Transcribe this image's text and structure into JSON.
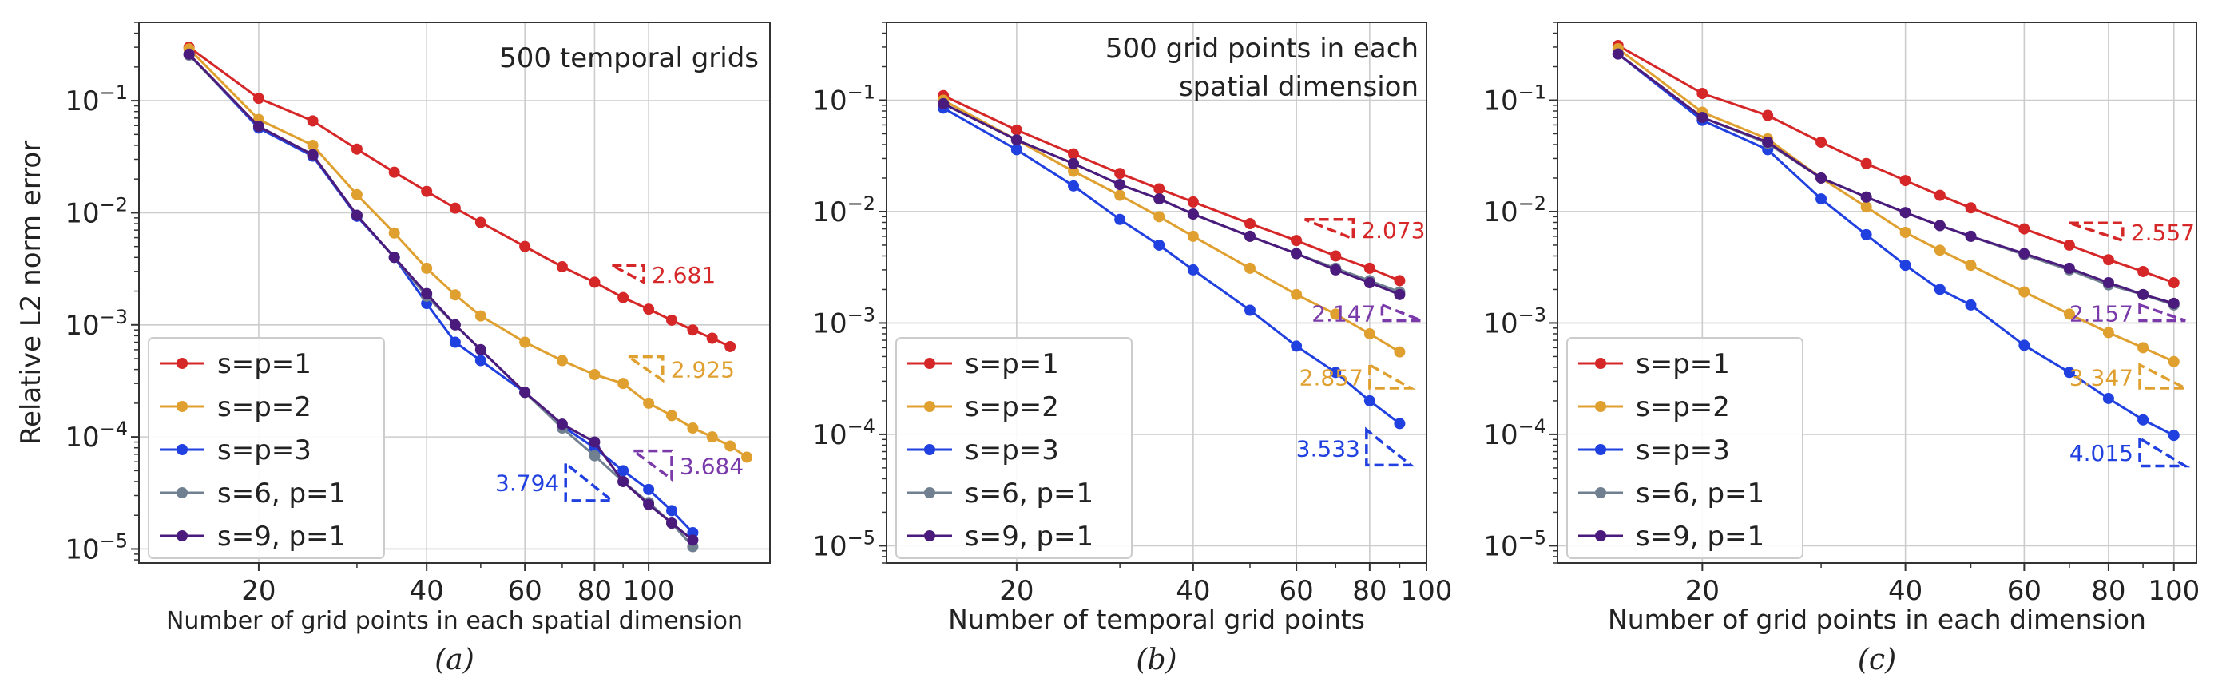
{
  "colors": {
    "s=p=1": "#d62728",
    "s=p=2": "#e0a030",
    "s=p=3": "#2040e0",
    "s=6, p=1": "#708090",
    "s=9, p=1": "#4b1a7d",
    "slope_purple": "#7a3aaa",
    "grid": "#cccccc",
    "axis": "#333333"
  },
  "chart_data": [
    {
      "type": "line",
      "panel": "a",
      "caption": "(a)",
      "title": "",
      "annotation": "500 temporal grids",
      "xlabel": "Number of grid points in each spatial dimension",
      "ylabel": "Relative L2 norm error",
      "xscale": "log",
      "yscale": "log",
      "xlim": [
        12.2,
        165
      ],
      "ylim": [
        7.5e-06,
        0.5
      ],
      "xticks": [
        20,
        40,
        60,
        80,
        100
      ],
      "yticks": [
        1e-05,
        0.0001,
        0.001,
        0.01,
        0.1
      ],
      "ytick_labels": [
        "10^-5",
        "10^-4",
        "10^-3",
        "10^-2",
        "10^-1"
      ],
      "grid": true,
      "legend_position": "lower-left",
      "series": [
        {
          "name": "s=p=1",
          "x": [
            15,
            20,
            25,
            30,
            35,
            40,
            45,
            50,
            60,
            70,
            80,
            90,
            100,
            110,
            120,
            130,
            140
          ],
          "y": [
            0.3,
            0.105,
            0.066,
            0.037,
            0.023,
            0.0155,
            0.011,
            0.0082,
            0.005,
            0.0033,
            0.0024,
            0.00175,
            0.00138,
            0.0011,
            0.0009,
            0.00076,
            0.00064
          ]
        },
        {
          "name": "s=p=2",
          "x": [
            15,
            20,
            25,
            30,
            35,
            40,
            45,
            50,
            60,
            70,
            80,
            90,
            100,
            110,
            120,
            130,
            140,
            150
          ],
          "y": [
            0.29,
            0.068,
            0.04,
            0.0145,
            0.0066,
            0.0032,
            0.00185,
            0.0012,
            0.0007,
            0.00048,
            0.00036,
            0.0003,
            0.0002,
            0.000155,
            0.00012,
            0.0001,
            8.3e-05,
            6.6e-05
          ]
        },
        {
          "name": "s=p=3",
          "x": [
            15,
            20,
            25,
            30,
            35,
            40,
            45,
            50,
            60,
            70,
            80,
            90,
            100,
            110,
            120
          ],
          "y": [
            0.26,
            0.057,
            0.032,
            0.0093,
            0.004,
            0.00155,
            0.0007,
            0.00048,
            0.00025,
            0.000125,
            8e-05,
            5e-05,
            3.4e-05,
            2.2e-05,
            1.4e-05
          ]
        },
        {
          "name": "s=6, p=1",
          "x": [
            15,
            20,
            25,
            30,
            35,
            40,
            45,
            50,
            60,
            70,
            80,
            90,
            100,
            110,
            120
          ],
          "y": [
            0.255,
            0.059,
            0.033,
            0.0095,
            0.004,
            0.0018,
            0.001,
            0.0006,
            0.00025,
            0.00012,
            6.8e-05,
            4e-05,
            2.6e-05,
            1.7e-05,
            1.05e-05
          ]
        },
        {
          "name": "s=9, p=1",
          "x": [
            15,
            20,
            25,
            30,
            35,
            40,
            45,
            50,
            60,
            70,
            80,
            90,
            100,
            110,
            120
          ],
          "y": [
            0.26,
            0.059,
            0.033,
            0.0095,
            0.004,
            0.0019,
            0.001,
            0.0006,
            0.00025,
            0.00013,
            9e-05,
            4e-05,
            2.5e-05,
            1.7e-05,
            1.2e-05
          ]
        }
      ],
      "slopes": [
        {
          "label": "2.681",
          "series": "s=p=1",
          "x1": 86,
          "x2": 98,
          "y_top": 0.0034,
          "y_bot": 0.0024,
          "shape": "tl",
          "label_side": "right"
        },
        {
          "label": "2.925",
          "series": "s=p=2",
          "x1": 92,
          "x2": 106,
          "y_top": 0.00052,
          "y_bot": 0.00032,
          "shape": "tl",
          "label_side": "right"
        },
        {
          "label": "3.684",
          "series": "slope_purple",
          "x1": 94,
          "x2": 110,
          "y_top": 7.5e-05,
          "y_bot": 4.2e-05,
          "shape": "tl",
          "label_side": "right"
        },
        {
          "label": "3.794",
          "series": "s=p=3",
          "x1": 71,
          "x2": 86,
          "y_top": 5.8e-05,
          "y_bot": 2.7e-05,
          "shape": "bl",
          "label_side": "left"
        }
      ]
    },
    {
      "type": "line",
      "panel": "b",
      "caption": "(b)",
      "title": "",
      "annotation": [
        "500 grid points in each",
        "spatial dimension"
      ],
      "xlabel": "Number of temporal grid points",
      "ylabel": "",
      "xscale": "log",
      "yscale": "log",
      "xlim": [
        12.0,
        100
      ],
      "ylim": [
        7e-06,
        0.5
      ],
      "xticks": [
        20,
        40,
        60,
        80,
        100
      ],
      "yticks": [
        1e-05,
        0.0001,
        0.001,
        0.01,
        0.1
      ],
      "ytick_labels": [
        "10^-5",
        "10^-4",
        "10^-3",
        "10^-2",
        "10^-1"
      ],
      "grid": true,
      "legend_position": "lower-left",
      "series": [
        {
          "name": "s=p=1",
          "x": [
            15,
            20,
            25,
            30,
            35,
            40,
            50,
            60,
            70,
            80,
            90
          ],
          "y": [
            0.11,
            0.054,
            0.033,
            0.022,
            0.016,
            0.0122,
            0.0078,
            0.0055,
            0.004,
            0.0031,
            0.0024
          ]
        },
        {
          "name": "s=p=2",
          "x": [
            15,
            20,
            25,
            30,
            35,
            40,
            50,
            60,
            70,
            80,
            90
          ],
          "y": [
            0.1,
            0.044,
            0.023,
            0.014,
            0.009,
            0.006,
            0.0031,
            0.0018,
            0.0012,
            0.0008,
            0.00055
          ]
        },
        {
          "name": "s=p=3",
          "x": [
            15,
            20,
            25,
            30,
            35,
            40,
            50,
            60,
            70,
            80,
            90
          ],
          "y": [
            0.085,
            0.036,
            0.017,
            0.0085,
            0.005,
            0.003,
            0.0013,
            0.00062,
            0.00036,
            0.0002,
            0.000125
          ]
        },
        {
          "name": "s=6, p=1",
          "x": [
            15,
            20,
            25,
            30,
            35,
            40,
            50,
            60,
            70,
            80,
            90
          ],
          "y": [
            0.093,
            0.044,
            0.027,
            0.0175,
            0.013,
            0.0095,
            0.006,
            0.0042,
            0.0031,
            0.0024,
            0.0019
          ]
        },
        {
          "name": "s=9, p=1",
          "x": [
            15,
            20,
            25,
            30,
            35,
            40,
            50,
            60,
            70,
            80,
            90
          ],
          "y": [
            0.093,
            0.044,
            0.027,
            0.0175,
            0.013,
            0.0095,
            0.006,
            0.0042,
            0.003,
            0.0023,
            0.0018
          ]
        }
      ],
      "slopes": [
        {
          "label": "2.073",
          "series": "s=p=1",
          "x1": 62,
          "x2": 75,
          "y_top": 0.0085,
          "y_bot": 0.0057,
          "shape": "tl",
          "label_side": "right"
        },
        {
          "label": "2.147",
          "series": "slope_purple",
          "x1": 84,
          "x2": 98,
          "y_top": 0.00145,
          "y_bot": 0.00105,
          "shape": "br",
          "label_side": "left"
        },
        {
          "label": "2.857",
          "series": "s=p=2",
          "x1": 80,
          "x2": 94,
          "y_top": 0.00042,
          "y_bot": 0.00026,
          "shape": "bl",
          "label_side": "left"
        },
        {
          "label": "3.533",
          "series": "s=p=3",
          "x1": 79,
          "x2": 94,
          "y_top": 0.00011,
          "y_bot": 5.3e-05,
          "shape": "bl",
          "label_side": "left"
        }
      ]
    },
    {
      "type": "line",
      "panel": "c",
      "caption": "(c)",
      "title": "",
      "annotation": "",
      "xlabel": "Number of grid points in each dimension",
      "ylabel": "",
      "xscale": "log",
      "yscale": "log",
      "xlim": [
        12.2,
        108
      ],
      "ylim": [
        7e-06,
        0.5
      ],
      "xticks": [
        20,
        40,
        60,
        80,
        100
      ],
      "yticks": [
        1e-05,
        0.0001,
        0.001,
        0.01,
        0.1
      ],
      "ytick_labels": [
        "10^-5",
        "10^-4",
        "10^-3",
        "10^-2",
        "10^-1"
      ],
      "grid": true,
      "legend_position": "lower-left",
      "series": [
        {
          "name": "s=p=1",
          "x": [
            15,
            20,
            25,
            30,
            35,
            40,
            45,
            50,
            60,
            70,
            80,
            90,
            100
          ],
          "y": [
            0.31,
            0.115,
            0.073,
            0.042,
            0.027,
            0.019,
            0.014,
            0.0108,
            0.007,
            0.005,
            0.0037,
            0.0029,
            0.0023
          ]
        },
        {
          "name": "s=p=2",
          "x": [
            15,
            20,
            25,
            30,
            35,
            40,
            45,
            50,
            60,
            70,
            80,
            90,
            100
          ],
          "y": [
            0.29,
            0.078,
            0.045,
            0.02,
            0.011,
            0.0065,
            0.0045,
            0.0033,
            0.0019,
            0.0012,
            0.00082,
            0.0006,
            0.00045
          ]
        },
        {
          "name": "s=p=3",
          "x": [
            15,
            20,
            25,
            30,
            35,
            40,
            45,
            50,
            60,
            70,
            80,
            90,
            100
          ],
          "y": [
            0.26,
            0.066,
            0.036,
            0.013,
            0.0062,
            0.0033,
            0.002,
            0.00145,
            0.00063,
            0.00036,
            0.00021,
            0.000135,
            9.8e-05
          ]
        },
        {
          "name": "s=6, p=1",
          "x": [
            15,
            20,
            25,
            30,
            35,
            40,
            45,
            50,
            60,
            70,
            80,
            90,
            100
          ],
          "y": [
            0.26,
            0.07,
            0.041,
            0.02,
            0.0135,
            0.0098,
            0.0075,
            0.006,
            0.0041,
            0.003,
            0.0022,
            0.0018,
            0.00145
          ]
        },
        {
          "name": "s=9, p=1",
          "x": [
            15,
            20,
            25,
            30,
            35,
            40,
            45,
            50,
            60,
            70,
            80,
            90,
            100
          ],
          "y": [
            0.26,
            0.07,
            0.042,
            0.02,
            0.0135,
            0.0098,
            0.0075,
            0.006,
            0.0042,
            0.0031,
            0.0023,
            0.0018,
            0.0015
          ]
        }
      ],
      "slopes": [
        {
          "label": "2.557",
          "series": "s=p=1",
          "x1": 70,
          "x2": 84,
          "y_top": 0.0079,
          "y_bot": 0.0055,
          "shape": "tl",
          "label_side": "right"
        },
        {
          "label": "2.157",
          "series": "slope_purple",
          "x1": 89,
          "x2": 104,
          "y_top": 0.00145,
          "y_bot": 0.00105,
          "shape": "br",
          "label_side": "left"
        },
        {
          "label": "3.347",
          "series": "s=p=2",
          "x1": 89,
          "x2": 104,
          "y_top": 0.00042,
          "y_bot": 0.00026,
          "shape": "bl",
          "label_side": "left"
        },
        {
          "label": "4.015",
          "series": "s=p=3",
          "x1": 89,
          "x2": 104,
          "y_top": 9.2e-05,
          "y_bot": 5.2e-05,
          "shape": "bl",
          "label_side": "left"
        }
      ]
    }
  ]
}
